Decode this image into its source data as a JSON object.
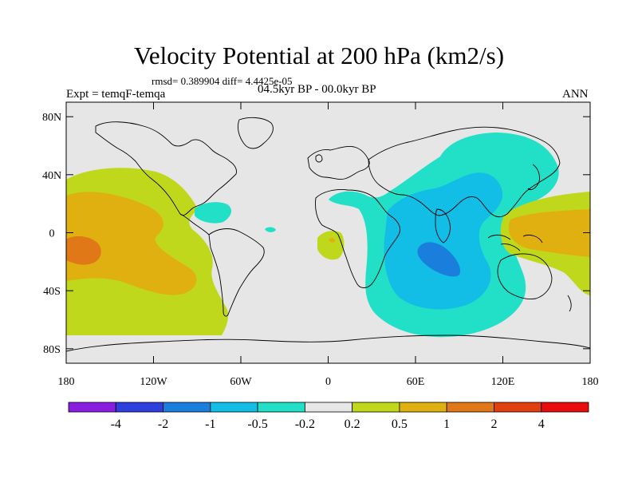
{
  "chart_data": {
    "type": "contour_map",
    "title": "Velocity Potential at 200 hPa (km2/s)",
    "stats": "rmsd= 0.389904 diff= 4.4425e-05",
    "left_label": "Expt = temqF-temqa",
    "center_label": "04.5kyr BP - 00.0kyr BP",
    "right_label": "ANN",
    "lat_range": [
      -90,
      90
    ],
    "lon_range": [
      -180,
      180
    ],
    "lat_ticks": [
      {
        "value": 80,
        "label": "80N"
      },
      {
        "value": 40,
        "label": "40N"
      },
      {
        "value": 0,
        "label": "0"
      },
      {
        "value": -40,
        "label": "40S"
      },
      {
        "value": -80,
        "label": "80S"
      }
    ],
    "lon_ticks": [
      {
        "value": -180,
        "label": "180"
      },
      {
        "value": -120,
        "label": "120W"
      },
      {
        "value": -60,
        "label": "60W"
      },
      {
        "value": 0,
        "label": "0"
      },
      {
        "value": 60,
        "label": "60E"
      },
      {
        "value": 120,
        "label": "120E"
      },
      {
        "value": 180,
        "label": "180"
      }
    ],
    "colorbar": {
      "boundaries": [
        -4,
        -2,
        -1,
        -0.5,
        -0.2,
        0.2,
        0.5,
        1,
        2,
        4
      ],
      "labels": [
        "-4",
        "-2",
        "-1",
        "-0.5",
        "-0.2",
        "0.2",
        "0.5",
        "1",
        "2",
        "4"
      ],
      "colors": [
        "#8a1ee0",
        "#2d3fdc",
        "#1a7fdc",
        "#12bde6",
        "#22e0c8",
        "#e6e6e6",
        "#bfd81c",
        "#e0b010",
        "#e07818",
        "#e04010",
        "#e80c0c"
      ]
    },
    "anomaly_regions": [
      {
        "name": "east-pacific-positive",
        "level": "0.2 to 0.5",
        "center": [
          -150,
          -5
        ]
      },
      {
        "name": "east-pacific-core",
        "level": "0.5 to 1",
        "center": [
          -155,
          -8
        ]
      },
      {
        "name": "central-pacific-max",
        "level": "1 to 2",
        "center": [
          -170,
          -10
        ]
      },
      {
        "name": "caribbean-negative",
        "level": "-0.5 to -0.2",
        "center": [
          -80,
          17
        ]
      },
      {
        "name": "west-africa-positive",
        "level": "0.2 to 0.5",
        "center": [
          0,
          -5
        ]
      },
      {
        "name": "indian-ocean-negative",
        "level": "-0.5 to -0.2",
        "center": [
          65,
          0
        ]
      },
      {
        "name": "indian-ocean-core",
        "level": "-1 to -0.5",
        "center": [
          65,
          -5
        ]
      },
      {
        "name": "indian-ocean-min",
        "level": "-2 to -1",
        "center": [
          70,
          -15
        ]
      },
      {
        "name": "west-pacific-positive",
        "level": "0.2 to 0.5",
        "center": [
          160,
          0
        ]
      },
      {
        "name": "west-pacific-core",
        "level": "0.5 to 1",
        "center": [
          150,
          0
        ]
      }
    ]
  }
}
